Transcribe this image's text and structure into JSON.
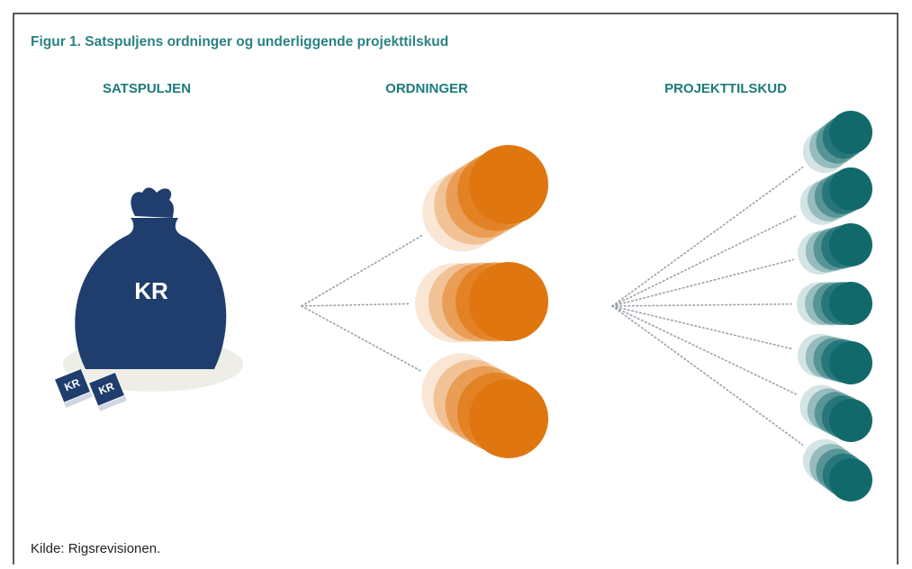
{
  "title": "Figur 1. Satspuljens ordninger og underliggende projekttilskud",
  "columns": [
    "SATSPULJEN",
    "ORDNINGER",
    "PROJEKTTILSKUD"
  ],
  "bag_label": "KR",
  "banknote_labels": [
    "KR",
    "KR"
  ],
  "source": "Kilde:  Rigsrevisionen."
}
